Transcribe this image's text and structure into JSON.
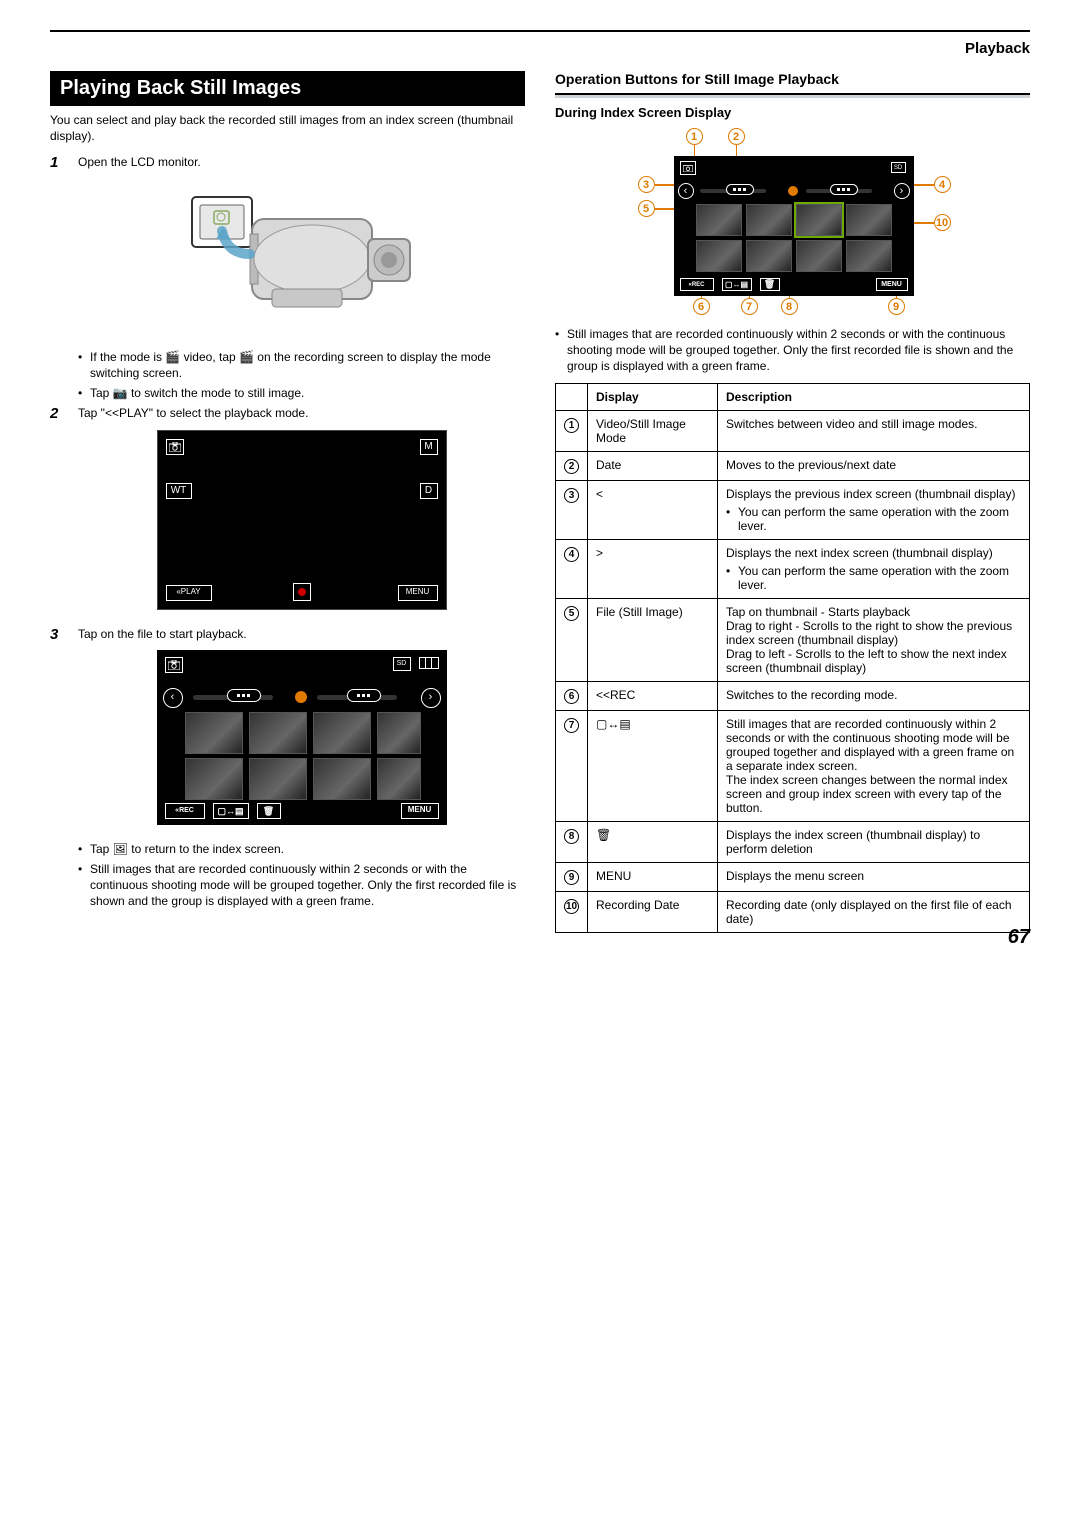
{
  "header_right": "Playback",
  "title": "Playing Back Still Images",
  "intro": "You can select and play back the recorded still images from an index screen (thumbnail display).",
  "steps": {
    "s1": {
      "text": "Open the LCD monitor.",
      "bullets": [
        "If the mode is 🎬 video, tap 🎬 on the recording screen to display the mode switching screen.",
        "Tap 📷 to switch the mode to still image."
      ]
    },
    "s2": {
      "text": "Tap \"<<PLAY\" to select the playback mode.",
      "lcd": {
        "play": "PLAY",
        "menu": "MENU",
        "wt": "WT",
        "m": "M",
        "d": "D"
      }
    },
    "s3": {
      "text": "Tap on the file to start playback.",
      "btm": {
        "rec": "REC",
        "menu": "MENU"
      },
      "bullets": [
        "Tap 🖼 to return to the index screen.",
        "Still images that are recorded continuously within 2 seconds or with the continuous shooting mode will be grouped together. Only the first recorded file is shown and the group is displayed with a green frame."
      ]
    }
  },
  "right": {
    "heading": "Operation Buttons for Still Image Playback",
    "sub": "During Index Screen Display",
    "diag_btm": {
      "rec": "REC",
      "menu": "MENU"
    },
    "note": "Still images that are recorded continuously within 2 seconds or with the continuous shooting mode will be grouped together. Only the first recorded file is shown and the group is displayed with a green frame.",
    "table_head": {
      "disp": "Display",
      "desc": "Description"
    },
    "rows": [
      {
        "n": "1",
        "disp": "Video/Still Image Mode",
        "desc": "Switches between video and still image modes."
      },
      {
        "n": "2",
        "disp": "Date",
        "desc": "Moves to the previous/next date"
      },
      {
        "n": "3",
        "disp": "<",
        "desc": "Displays the previous index screen (thumbnail display)",
        "sub": "You can perform the same operation with the zoom lever."
      },
      {
        "n": "4",
        "disp": ">",
        "desc": "Displays the next index screen (thumbnail display)",
        "sub": "You can perform the same operation with the zoom lever."
      },
      {
        "n": "5",
        "disp": "File (Still Image)",
        "desc": "Tap on thumbnail - Starts playback\nDrag to right - Scrolls to the right to show the previous index screen (thumbnail display)\nDrag to left - Scrolls to the left to show the next index screen (thumbnail display)"
      },
      {
        "n": "6",
        "disp": "<<REC",
        "desc": "Switches to the recording mode."
      },
      {
        "n": "7",
        "disp": "▢↔▤",
        "desc": "Still images that are recorded continuously within 2 seconds or with the continuous shooting mode will be grouped together and displayed with a green frame on a separate index screen.\nThe index screen changes between the normal index screen and group index screen with every tap of the button."
      },
      {
        "n": "8",
        "disp": "🗑",
        "desc": "Displays the index screen (thumbnail display) to perform deletion"
      },
      {
        "n": "9",
        "disp": "MENU",
        "desc": "Displays the menu screen"
      },
      {
        "n": "10",
        "disp": "Recording Date",
        "desc": "Recording date (only displayed on the first file of each date)"
      }
    ]
  },
  "page_number": "67"
}
